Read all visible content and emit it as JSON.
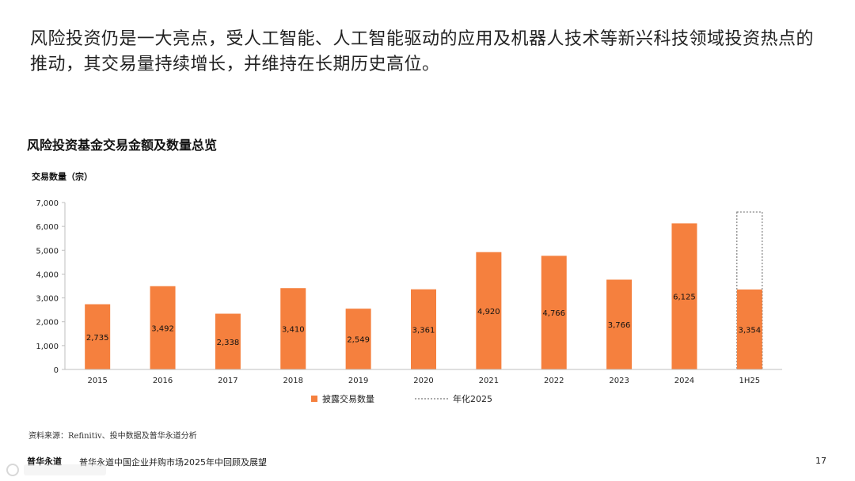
{
  "headline": "风险投资仍是一大亮点，受人工智能、人工智能驱动的应用及机器人技术等新兴科技领域投资热点的推动，其交易量持续增长，并维持在长期历史高位。",
  "source_note": "资料来源：Refinitiv、投中数据及普华永道分析",
  "footer": {
    "brand": "普华永道",
    "text": "普华永道中国企业并购市场2025年中回顾及展望",
    "page": "17"
  },
  "colors": {
    "bar": "#F5803E",
    "axis": "#bfbfbf",
    "text": "#111111"
  },
  "chart_data": {
    "type": "bar",
    "title": "风险投资基金交易金额及数量总览",
    "ylabel": "交易数量（宗）",
    "xlabel": "",
    "ylim": [
      0,
      7000
    ],
    "yticks": [
      0,
      1000,
      2000,
      3000,
      4000,
      5000,
      6000,
      7000
    ],
    "ytick_labels": [
      "0",
      "1,000",
      "2,000",
      "3,000",
      "4,000",
      "5,000",
      "6,000",
      "7,000"
    ],
    "categories": [
      "2015",
      "2016",
      "2017",
      "2018",
      "2019",
      "2020",
      "2021",
      "2022",
      "2023",
      "2024",
      "1H25"
    ],
    "series": [
      {
        "name": "披露交易数量",
        "style": "solid",
        "values": [
          2735,
          3492,
          2338,
          3410,
          2549,
          3361,
          4920,
          4766,
          3766,
          6125,
          3354
        ],
        "labels": [
          "2,735",
          "3,492",
          "2,338",
          "3,410",
          "2,549",
          "3,361",
          "4,920",
          "4,766",
          "3,766",
          "6,125",
          "3,354"
        ]
      },
      {
        "name": "年化2025",
        "style": "dotted-outline",
        "values": [
          null,
          null,
          null,
          null,
          null,
          null,
          null,
          null,
          null,
          null,
          6600
        ]
      }
    ],
    "legend_position": "bottom",
    "grid": false
  }
}
